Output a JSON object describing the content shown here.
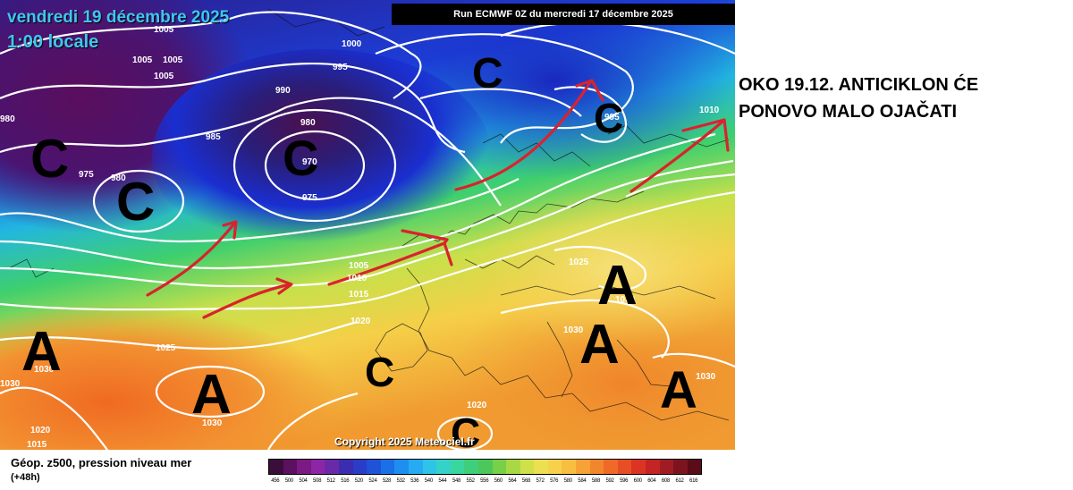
{
  "map": {
    "valid_date": "vendredi 19 décembre 2025",
    "local_time": "1:00 locale",
    "run_label": "Run ECMWF 0Z du mercredi 17 décembre 2025",
    "copyright": "Copyright 2025 Meteociel.fr",
    "pressure_labels": [
      "1005",
      "1005",
      "1005",
      "1005",
      "1000",
      "995",
      "990",
      "985",
      "980",
      "980",
      "980",
      "975",
      "975",
      "970",
      "995",
      "1010",
      "1005",
      "1010",
      "1015",
      "1020",
      "1025",
      "1030",
      "1030",
      "1030",
      "1025",
      "1030",
      "1020",
      "1015",
      "1020",
      "1030",
      "1030"
    ],
    "system_markers": {
      "lows": [
        "C",
        "C",
        "C",
        "C",
        "C",
        "C",
        "C"
      ],
      "highs": [
        "A",
        "A",
        "A",
        "A",
        "A"
      ]
    },
    "colors": {
      "deep_low": "#5c0f5e",
      "low": "#1d24c8",
      "mid": "#34c36e",
      "high": "#f6d54a",
      "very_high": "#f07a1c",
      "isobar": "#ffffff",
      "arrow": "#d9232c",
      "marker": "#000000"
    }
  },
  "annotation": {
    "line1": "OKO 19.12. ANTICIKLON ĆE",
    "line2": "PONOVO MALO OJAČATI"
  },
  "legend": {
    "title": "Géop. z500, pression niveau mer",
    "subtitle": "(+48h)",
    "colorbar_ticks": [
      "456",
      "500",
      "504",
      "508",
      "512",
      "516",
      "520",
      "524",
      "528",
      "532",
      "536",
      "540",
      "544",
      "548",
      "552",
      "556",
      "560",
      "564",
      "568",
      "572",
      "576",
      "580",
      "584",
      "588",
      "592",
      "596",
      "600",
      "604",
      "608",
      "612",
      "616"
    ],
    "colorbar_colors": [
      "#3a0d3a",
      "#5c1060",
      "#7a1a82",
      "#8e24a6",
      "#6a2aa8",
      "#3c2cb0",
      "#2a3cc8",
      "#1e52d8",
      "#1a70e6",
      "#1e8ef0",
      "#26aaf2",
      "#2ec4e8",
      "#34d2c8",
      "#3ad6a0",
      "#3ecf7a",
      "#4cc85a",
      "#78cf48",
      "#a8d844",
      "#d0e048",
      "#ece050",
      "#f6d24c",
      "#f8be40",
      "#f6a236",
      "#f2862c",
      "#ee6a26",
      "#e84e24",
      "#dc3424",
      "#c42424",
      "#a01c24",
      "#7c1420",
      "#5a0c18"
    ]
  }
}
